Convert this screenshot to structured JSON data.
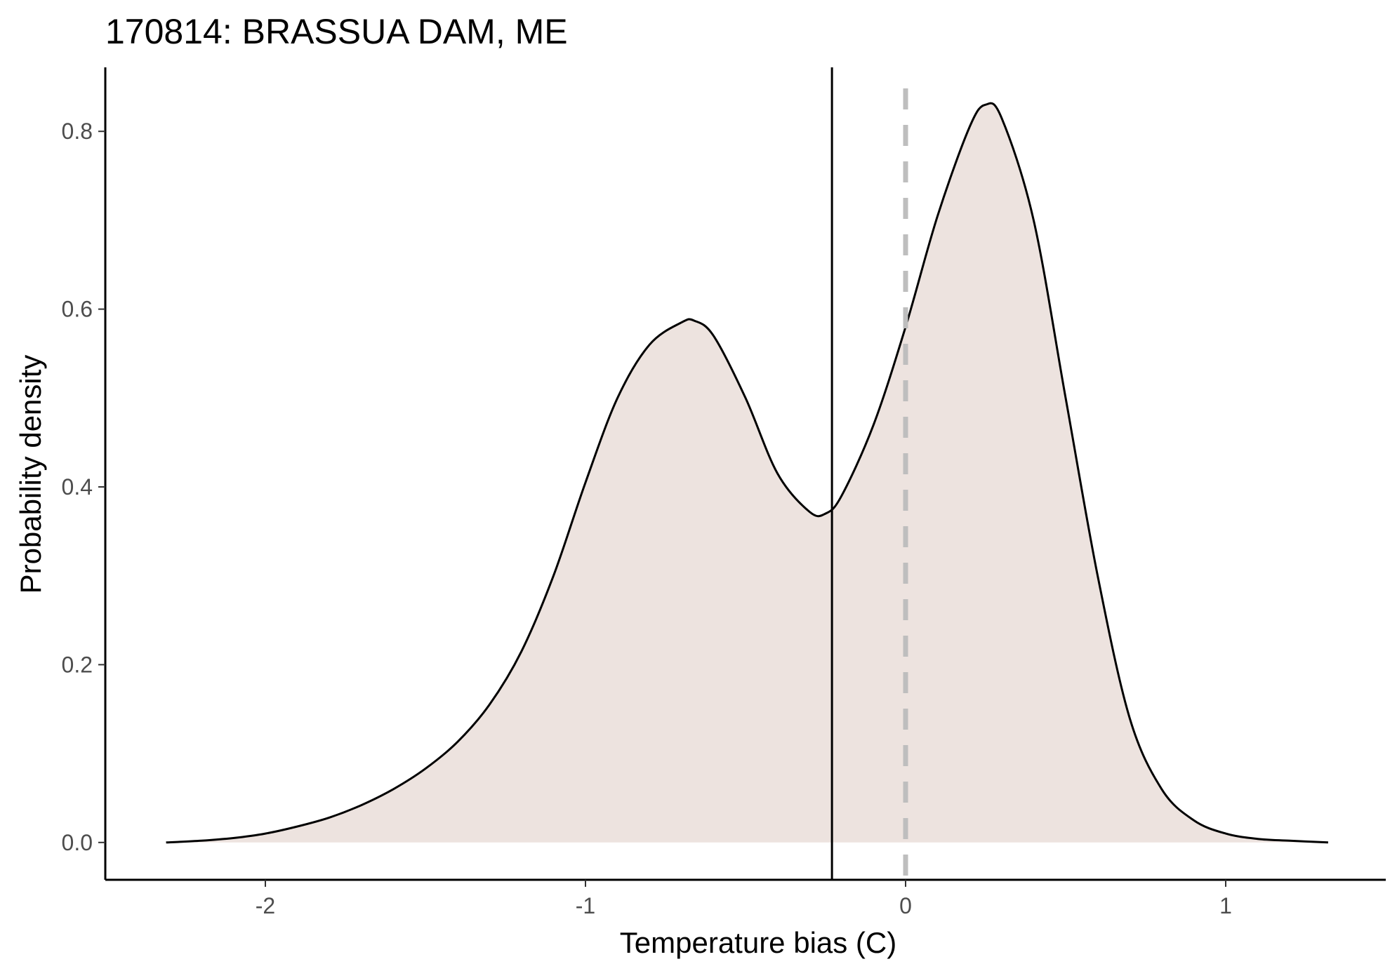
{
  "chart_data": {
    "type": "area",
    "title": "170814: BRASSUA DAM, ME",
    "xlabel": "Temperature bias (C)",
    "ylabel": "Probability density",
    "xlim": [
      -2.5,
      1.5
    ],
    "ylim": [
      -0.042,
      0.872
    ],
    "x_ticks": [
      -2,
      -1,
      0,
      1
    ],
    "x_tick_labels": [
      "-2",
      "-1",
      "0",
      "1"
    ],
    "y_ticks": [
      0.0,
      0.2,
      0.4,
      0.6,
      0.8
    ],
    "y_tick_labels": [
      "0.0",
      "0.2",
      "0.4",
      "0.6",
      "0.8"
    ],
    "grid": false,
    "legend": "none",
    "density_curve": {
      "x": [
        -2.31,
        -2.2,
        -2.1,
        -2.0,
        -1.9,
        -1.8,
        -1.7,
        -1.6,
        -1.5,
        -1.4,
        -1.3,
        -1.2,
        -1.1,
        -1.0,
        -0.9,
        -0.8,
        -0.7,
        -0.66,
        -0.6,
        -0.5,
        -0.4,
        -0.3,
        -0.25,
        -0.2,
        -0.1,
        0.0,
        0.1,
        0.2,
        0.25,
        0.3,
        0.4,
        0.5,
        0.6,
        0.7,
        0.8,
        0.9,
        1.0,
        1.1,
        1.2,
        1.32
      ],
      "y": [
        0.0,
        0.002,
        0.005,
        0.01,
        0.018,
        0.028,
        0.042,
        0.06,
        0.083,
        0.113,
        0.155,
        0.215,
        0.3,
        0.405,
        0.5,
        0.56,
        0.585,
        0.587,
        0.57,
        0.5,
        0.415,
        0.372,
        0.37,
        0.39,
        0.47,
        0.58,
        0.705,
        0.805,
        0.83,
        0.815,
        0.7,
        0.5,
        0.3,
        0.14,
        0.06,
        0.025,
        0.01,
        0.004,
        0.002,
        0.0
      ]
    },
    "vertical_lines": [
      {
        "x": -0.23,
        "style": "solid",
        "color": "#000000"
      },
      {
        "x": 0.0,
        "style": "dashed",
        "color": "#bebebe"
      }
    ],
    "colors": {
      "fill": "#ede3df",
      "curve": "#000000",
      "axis": "#000000"
    }
  }
}
